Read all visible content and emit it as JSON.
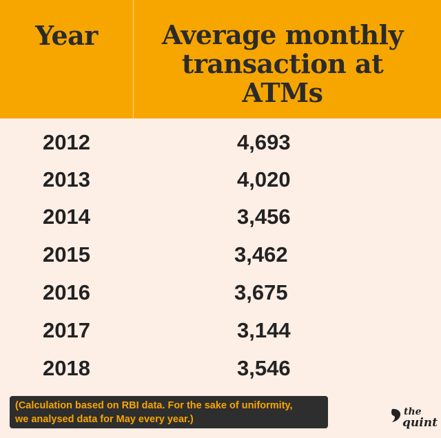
{
  "chart_data": {
    "type": "table",
    "columns": [
      "Year",
      "Average monthly transaction at ATMs"
    ],
    "rows": [
      {
        "year": "2012",
        "value": "4,693"
      },
      {
        "year": "2013",
        "value": "4,020"
      },
      {
        "year": "2014",
        "value": "3,456"
      },
      {
        "year": "2015",
        "value": "3,462"
      },
      {
        "year": "2016",
        "value": "3,675"
      },
      {
        "year": "2017",
        "value": "3,144"
      },
      {
        "year": "2018",
        "value": "3,546"
      }
    ],
    "footnote_line1": "(Calculation based on RBI data. For the sake of uniformity,",
    "footnote_line2": "we analysed data for May every year.)"
  },
  "header": {
    "year_label": "Year",
    "value_label_line1": "Average monthly",
    "value_label_line2": "transaction at",
    "value_label_line3": "ATMs"
  },
  "logo": {
    "the": "the",
    "quint": "quint"
  },
  "colors": {
    "header_bg": "#f7a600",
    "body_bg": "#fdeee6",
    "footnote_bg": "#2e2e2e",
    "footnote_text": "#f7a600"
  }
}
